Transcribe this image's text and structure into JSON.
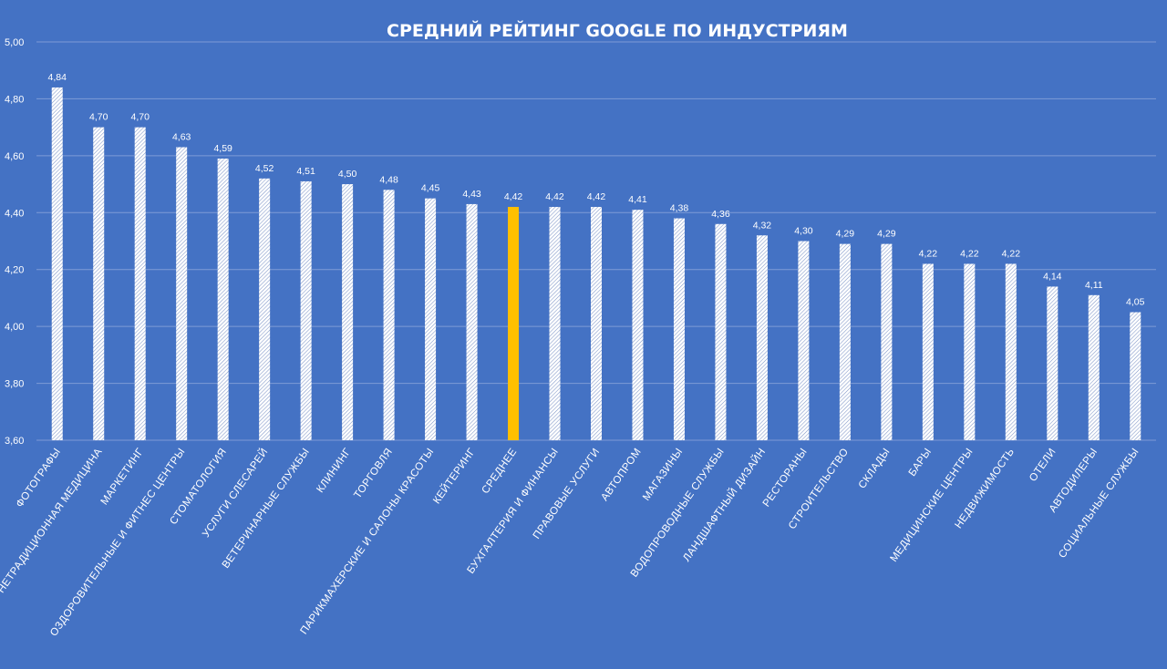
{
  "chart_data": {
    "type": "bar",
    "title": "СРЕДНИЙ РЕЙТИНГ GOOGLE ПО ИНДУСТРИЯМ",
    "xlabel": "",
    "ylabel": "",
    "ylim": [
      3.6,
      5.0
    ],
    "yticks": [
      "3,60",
      "3,80",
      "4,00",
      "4,20",
      "4,40",
      "4,60",
      "4,80",
      "5,00"
    ],
    "grid": true,
    "categories": [
      "ФОТОГРАФЫ",
      "НЕТРАДИЦИОННАЯ МЕДИЦИНА",
      "МАРКЕТИНГ",
      "ОЗДОРОВИТЕЛЬНЫЕ И ФИТНЕС ЦЕНТРЫ",
      "СТОМАТОЛОГИЯ",
      "УСЛУГИ СЛЕСАРЕЙ",
      "ВЕТЕРИНАРНЫЕ СЛУЖБЫ",
      "КЛИНИНГ",
      "ТОРГОВЛЯ",
      "ПАРИКМАХЕРСКИЕ И САЛОНЫ КРАСОТЫ",
      "КЕЙТЕРИНГ",
      "СРЕДНЕЕ",
      "БУХГАЛТЕРИЯ И ФИНАНСЫ",
      "ПРАВОВЫЕ УСЛУГИ",
      "АВТОПРОМ",
      "МАГАЗИНЫ",
      "ВОДОПРОВОДНЫЕ СЛУЖБЫ",
      "ЛАНДШАФТНЫЙ ДИЗАЙН",
      "РЕСТОРАНЫ",
      "СТРОИТЕЛЬСТВО",
      "СКЛАДЫ",
      "БАРЫ",
      "МЕДИЦИНСКИЕ ЦЕНТРЫ",
      "НЕДВИЖИМОСТЬ",
      "ОТЕЛИ",
      "АВТОДИЛЕРЫ",
      "СОЦИАЛЬНЫЕ СЛУЖБЫ"
    ],
    "values": [
      4.84,
      4.7,
      4.7,
      4.63,
      4.59,
      4.52,
      4.51,
      4.5,
      4.48,
      4.45,
      4.43,
      4.42,
      4.42,
      4.42,
      4.41,
      4.38,
      4.36,
      4.32,
      4.3,
      4.29,
      4.29,
      4.22,
      4.22,
      4.22,
      4.14,
      4.11,
      4.05
    ],
    "value_labels": [
      "4,84",
      "4,70",
      "4,70",
      "4,63",
      "4,59",
      "4,52",
      "4,51",
      "4,50",
      "4,48",
      "4,45",
      "4,43",
      "4,42",
      "4,42",
      "4,42",
      "4,41",
      "4,38",
      "4,36",
      "4,32",
      "4,30",
      "4,29",
      "4,29",
      "4,22",
      "4,22",
      "4,22",
      "4,14",
      "4,11",
      "4,05"
    ],
    "highlight_category": "СРЕДНЕЕ",
    "colors": {
      "background": "#4472c4",
      "bar_fill": "#ffffff",
      "bar_hatch": "#7f96c8",
      "highlight": "#ffc000",
      "grid": "#7e9bd6",
      "text": "#ffffff"
    }
  }
}
